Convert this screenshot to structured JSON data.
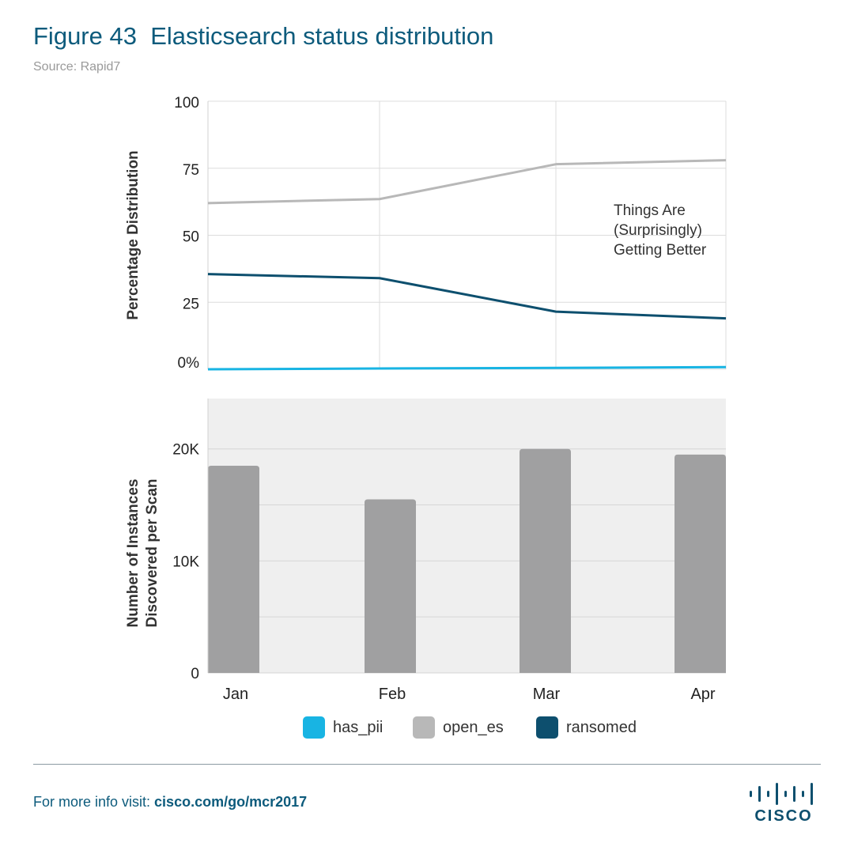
{
  "header": {
    "title": "Figure 43  Elasticsearch status distribution",
    "source": "Source: Rapid7"
  },
  "footer": {
    "prefix": "For more info visit: ",
    "link": "cisco.com/go/mcr2017",
    "logo_text": "CISCO"
  },
  "chart_data": [
    {
      "type": "line",
      "ylabel": "Percentage Distribution",
      "ylim": [
        0,
        100
      ],
      "yticks": [
        "0%",
        "25",
        "50",
        "75",
        "100"
      ],
      "ytick_values": [
        0,
        25,
        50,
        75,
        100
      ],
      "x": [
        "Jan",
        "Feb",
        "Mar",
        "Apr"
      ],
      "grid": true,
      "annotation": [
        "Things Are",
        "(Surprisingly)",
        "Getting Better"
      ],
      "series": [
        {
          "name": "open_es",
          "color": "#b8b8b8",
          "values": [
            62,
            63.5,
            76.5,
            78
          ]
        },
        {
          "name": "ransomed",
          "color": "#0d4f6e",
          "values": [
            35.5,
            34,
            21.5,
            19
          ]
        },
        {
          "name": "has_pii",
          "color": "#18b4e3",
          "values": [
            0,
            0.3,
            0.5,
            0.8
          ]
        }
      ]
    },
    {
      "type": "bar",
      "ylabel": [
        "Number of Instances",
        "Discovered per Scan"
      ],
      "ylim": [
        0,
        24500
      ],
      "yticks": [
        "0",
        "10K",
        "20K"
      ],
      "ytick_values": [
        0,
        10000,
        20000
      ],
      "categories": [
        "Jan",
        "Feb",
        "Mar",
        "Apr"
      ],
      "values": [
        18500,
        15500,
        20000,
        19500
      ],
      "bar_color": "#a0a0a1",
      "background": "#efefef"
    }
  ],
  "legend": [
    {
      "name": "has_pii",
      "color": "#18b4e3"
    },
    {
      "name": "open_es",
      "color": "#b8b8b8"
    },
    {
      "name": "ransomed",
      "color": "#0d4f6e"
    }
  ]
}
